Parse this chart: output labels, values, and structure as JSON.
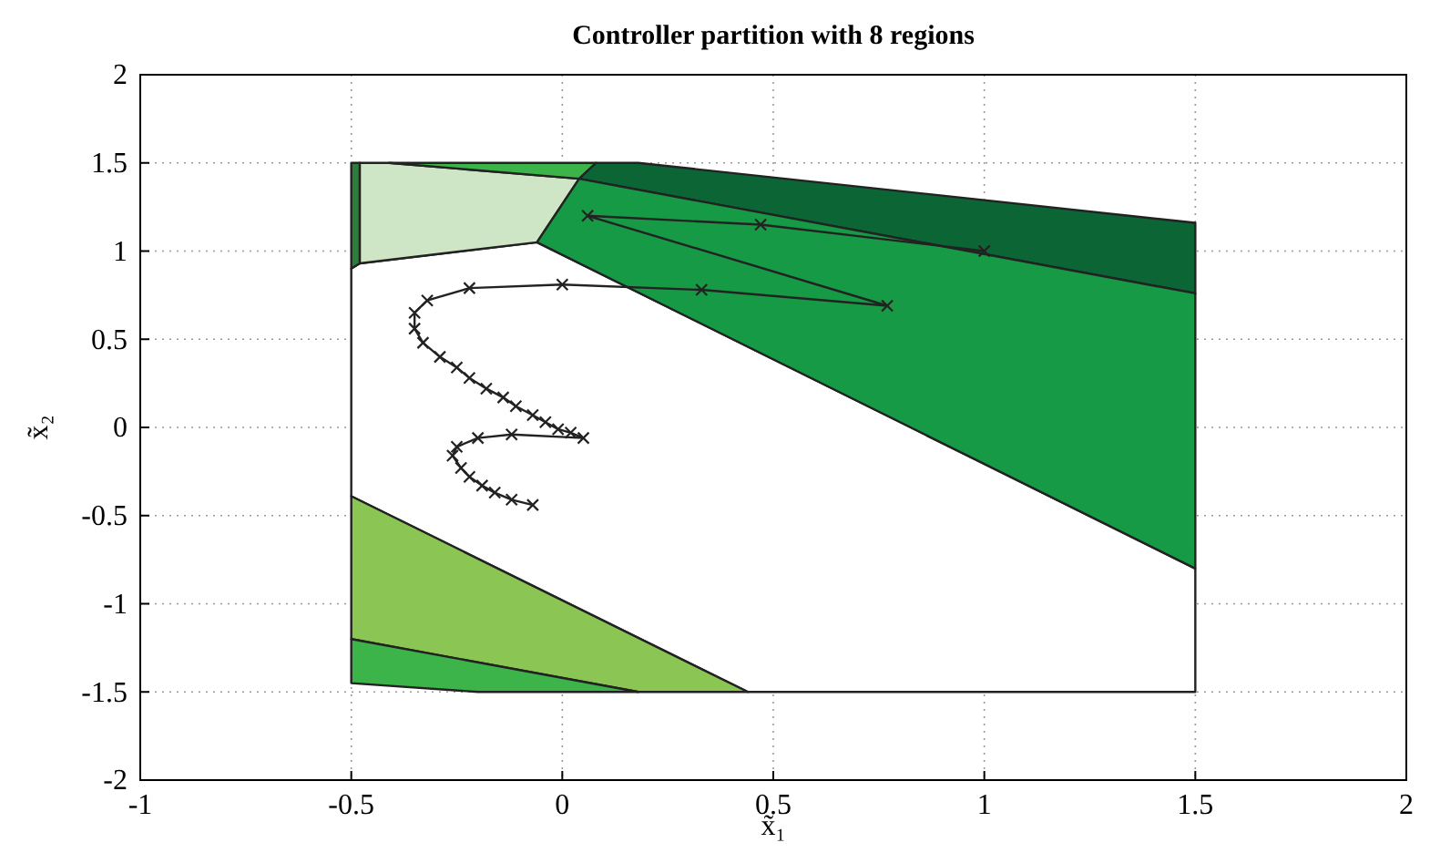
{
  "chart_data": {
    "type": "line",
    "title": "Controller partition with 8 regions",
    "xlabel": "x̃₁",
    "ylabel": "x̃₂",
    "xlim": [
      -1,
      2
    ],
    "xticks": [
      -1,
      -0.5,
      0,
      0.5,
      1,
      1.5,
      2
    ],
    "ylim": [
      -2,
      2
    ],
    "yticks": [
      -2,
      -1.5,
      -1,
      -0.5,
      0,
      0.5,
      1,
      1.5,
      2
    ],
    "grid": true,
    "series": [
      {
        "type": "area",
        "color": "#ffffff",
        "x": [
          -0.48,
          -0.06,
          1.5,
          1.5,
          0.44,
          -0.5,
          -0.5
        ],
        "values": [
          0.93,
          1.05,
          -0.8,
          -1.5,
          -1.5,
          -0.39,
          0.9
        ]
      },
      {
        "type": "area",
        "color": "#cfe6c6",
        "x": [
          -0.48,
          -0.41,
          0.04,
          -0.06,
          -0.48
        ],
        "values": [
          1.5,
          1.5,
          1.41,
          1.05,
          0.93
        ]
      },
      {
        "type": "area",
        "color": "#2e7d3a",
        "x": [
          -0.5,
          -0.48,
          -0.48,
          -0.5
        ],
        "values": [
          1.5,
          1.5,
          0.93,
          0.9
        ]
      },
      {
        "type": "area",
        "color": "#3cb44a",
        "x": [
          -0.41,
          0.08,
          0.04
        ],
        "values": [
          1.5,
          1.5,
          1.41
        ]
      },
      {
        "type": "area",
        "color": "#0b6535",
        "x": [
          0.08,
          0.18,
          1.5,
          1.5,
          0.04
        ],
        "values": [
          1.5,
          1.5,
          1.16,
          0.76,
          1.41
        ]
      },
      {
        "type": "area",
        "color": "#169a46",
        "x": [
          0.04,
          1.5,
          1.5,
          -0.06
        ],
        "values": [
          1.41,
          0.76,
          -0.8,
          1.05
        ]
      },
      {
        "type": "area",
        "color": "#8bc553",
        "x": [
          -0.5,
          0.44,
          0.18,
          -0.5
        ],
        "values": [
          -0.39,
          -1.5,
          -1.5,
          -1.2
        ]
      },
      {
        "type": "area",
        "color": "#3cb44a",
        "x": [
          -0.5,
          0.18,
          -0.2,
          -0.5
        ],
        "values": [
          -1.2,
          -1.5,
          -1.5,
          -1.45
        ]
      },
      {
        "color": "#222222",
        "marker": "cross",
        "x": [
          1.0,
          0.47,
          0.06,
          0.77,
          0.33,
          0.0,
          -0.22,
          -0.32,
          -0.35,
          -0.35,
          -0.33,
          -0.29,
          -0.25,
          -0.22,
          -0.18,
          -0.14,
          -0.11,
          -0.07,
          -0.04,
          -0.01,
          0.02,
          0.05,
          -0.12,
          -0.2,
          -0.25,
          -0.26,
          -0.24,
          -0.22,
          -0.19,
          -0.16,
          -0.12,
          -0.07
        ],
        "values": [
          1.0,
          1.15,
          1.2,
          0.69,
          0.78,
          0.81,
          0.79,
          0.72,
          0.65,
          0.56,
          0.48,
          0.4,
          0.34,
          0.28,
          0.22,
          0.17,
          0.12,
          0.07,
          0.03,
          -0.01,
          -0.03,
          -0.06,
          -0.04,
          -0.06,
          -0.11,
          -0.16,
          -0.23,
          -0.28,
          -0.33,
          -0.37,
          -0.41,
          -0.44
        ]
      }
    ]
  }
}
